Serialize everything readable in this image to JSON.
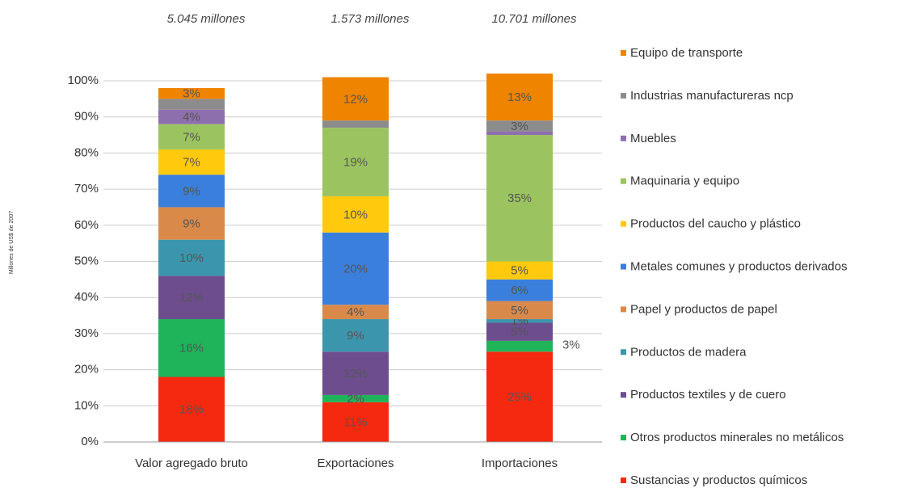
{
  "chart_data": {
    "type": "stacked_bar",
    "y_label": "Millones de US$ de 2007",
    "categories": [
      "Valor agregado bruto",
      "Exportaciones",
      "Importaciones"
    ],
    "annotations": [
      "5.045 millones",
      "1.573 millones",
      "10.701 millones"
    ],
    "ylim": [
      0,
      100
    ],
    "yticks": [
      {
        "value": 0,
        "label": "0%"
      },
      {
        "value": 10,
        "label": "10%"
      },
      {
        "value": 20,
        "label": "20%"
      },
      {
        "value": 30,
        "label": "30%"
      },
      {
        "value": 40,
        "label": "40%"
      },
      {
        "value": 50,
        "label": "50%"
      },
      {
        "value": 60,
        "label": "60%"
      },
      {
        "value": 70,
        "label": "70%"
      },
      {
        "value": 80,
        "label": "80%"
      },
      {
        "value": 90,
        "label": "90%"
      },
      {
        "value": 100,
        "label": "100%"
      }
    ],
    "grid": true,
    "legend": "right",
    "series": [
      {
        "name": "Sustancias y productos químicos",
        "color": "#f5290f",
        "values": [
          18,
          11,
          25
        ],
        "value_labels": [
          "18%",
          "11%",
          "25%"
        ]
      },
      {
        "name": "Otros productos minerales no metálicos",
        "color": "#1fb45a",
        "values": [
          16,
          2,
          3
        ],
        "value_labels": [
          "16%",
          "2%",
          "3%"
        ]
      },
      {
        "name": "Productos textiles y de cuero",
        "color": "#6e4d8e",
        "values": [
          12,
          12,
          5
        ],
        "value_labels": [
          "12%",
          "12%",
          "5%"
        ]
      },
      {
        "name": "Productos de madera",
        "color": "#3b96ad",
        "values": [
          10,
          9,
          1
        ],
        "value_labels": [
          "10%",
          "9%",
          "1%"
        ]
      },
      {
        "name": "Papel y productos de papel",
        "color": "#d98a4a",
        "values": [
          9,
          4,
          5
        ],
        "value_labels": [
          "9%",
          "4%",
          "5%"
        ]
      },
      {
        "name": "Metales comunes y productos derivados",
        "color": "#3b7fdc",
        "values": [
          9,
          20,
          6
        ],
        "value_labels": [
          "9%",
          "20%",
          "6%"
        ]
      },
      {
        "name": "Productos del caucho y plástico",
        "color": "#ffc90e",
        "values": [
          7,
          10,
          5
        ],
        "value_labels": [
          "7%",
          "10%",
          "5%"
        ]
      },
      {
        "name": "Maquinaria y equipo",
        "color": "#9bc460",
        "values": [
          7,
          19,
          35
        ],
        "value_labels": [
          "7%",
          "19%",
          "35%"
        ]
      },
      {
        "name": "Muebles",
        "color": "#8e6fae",
        "values": [
          4,
          0,
          1
        ],
        "value_labels": [
          "4%",
          null,
          null
        ]
      },
      {
        "name": "Industrias manufactureras ncp",
        "color": "#8c8c8c",
        "values": [
          3,
          2,
          3
        ],
        "value_labels": [
          null,
          null,
          "3%"
        ]
      },
      {
        "name": "Equipo de transporte",
        "color": "#ef8400",
        "values": [
          3,
          12,
          13
        ],
        "value_labels": [
          "3%",
          "12%",
          "13%"
        ]
      }
    ]
  }
}
